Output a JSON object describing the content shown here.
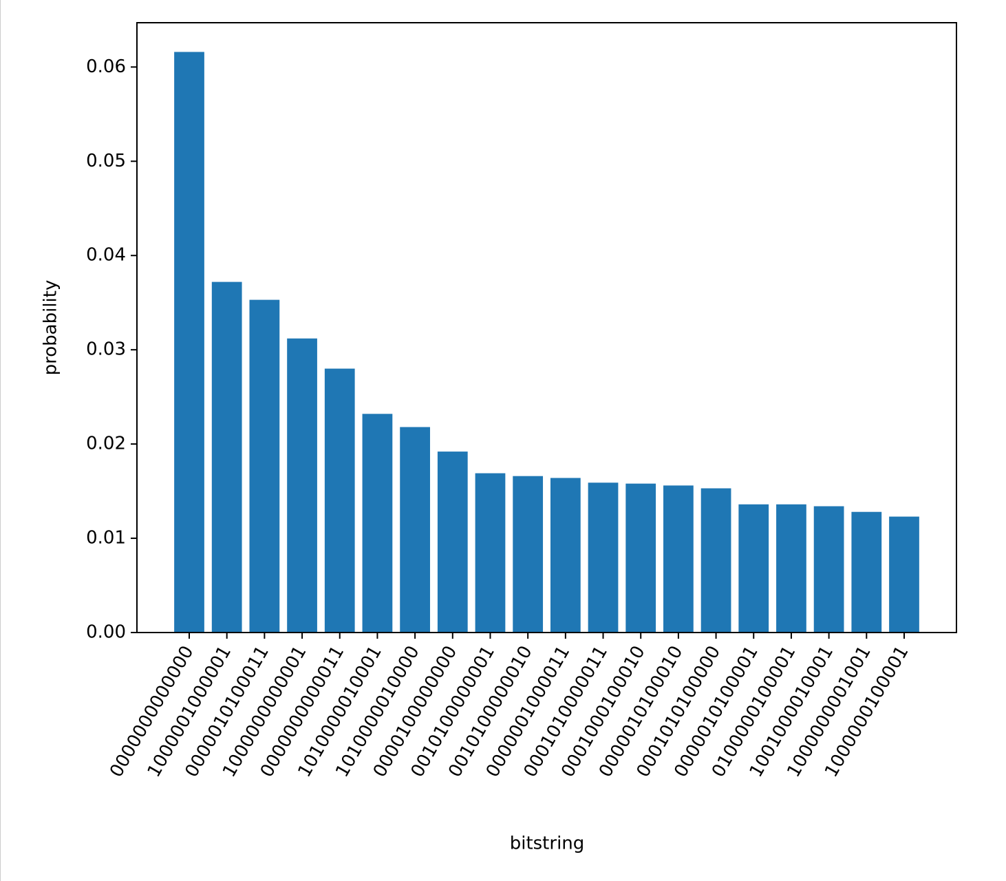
{
  "chart_data": {
    "type": "bar",
    "xlabel": "bitstring",
    "ylabel": "probability",
    "categories": [
      "0000000000000",
      "1000001000001",
      "0000010100011",
      "1000000000001",
      "0000000000011",
      "1010000010001",
      "1010000010000",
      "0000100000000",
      "0010100000001",
      "0010100000010",
      "0000001000011",
      "0001010000011",
      "0001000100010",
      "0000010100010",
      "0001010100000",
      "0000010100001",
      "0100000100001",
      "1001000010001",
      "1000000001001",
      "1000000100001"
    ],
    "values": [
      0.0616,
      0.0372,
      0.0353,
      0.0312,
      0.028,
      0.0232,
      0.0218,
      0.0192,
      0.0169,
      0.0166,
      0.0164,
      0.0159,
      0.0158,
      0.0156,
      0.0153,
      0.0136,
      0.0136,
      0.0134,
      0.0128,
      0.0123
    ],
    "color": "#1f77b4",
    "ylim": [
      0,
      0.0647
    ],
    "yticks": [
      {
        "value": 0,
        "label": "0.00"
      },
      0.01,
      0.02,
      0.03,
      0.04,
      0.05,
      0.06
    ],
    "grid": false
  }
}
